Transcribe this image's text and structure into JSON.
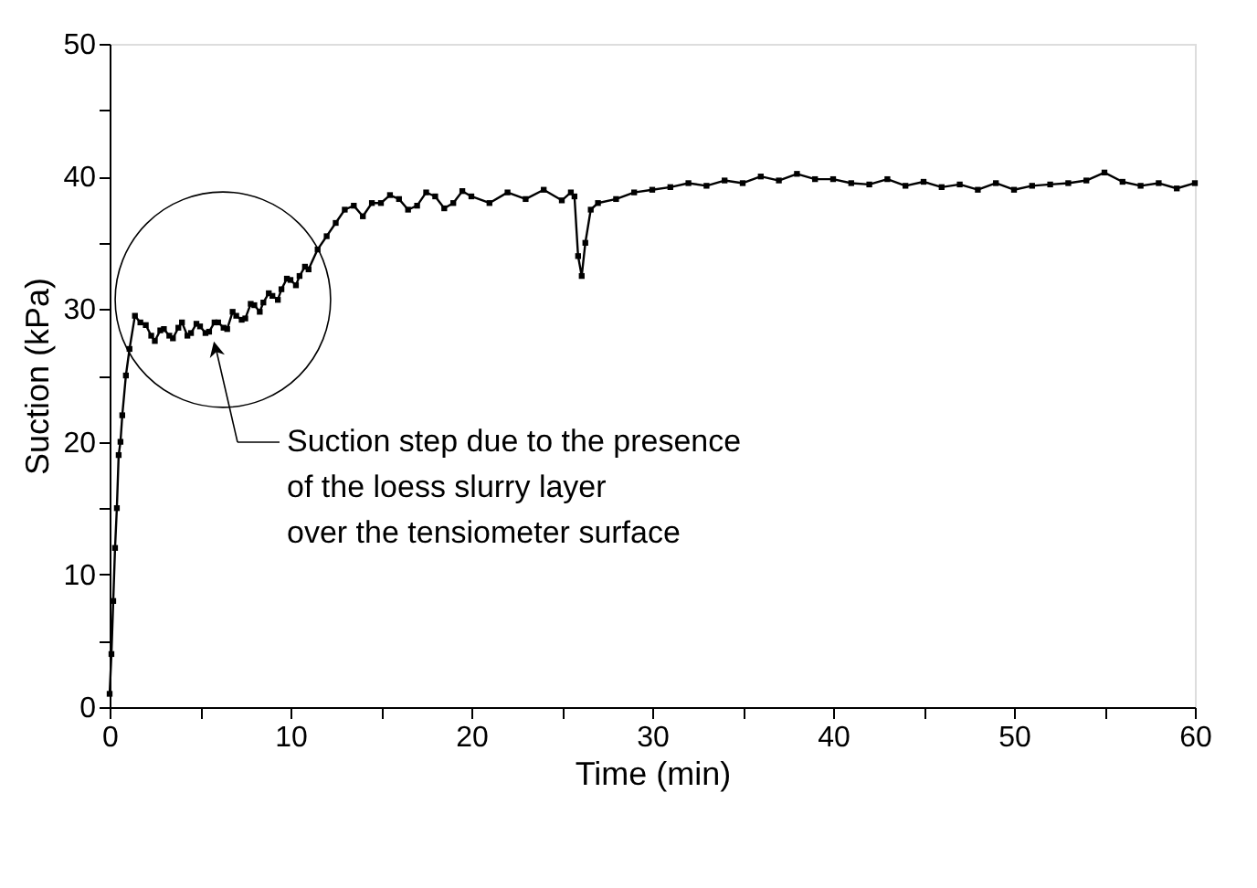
{
  "chart_data": {
    "type": "line",
    "xlabel": "Time (min)",
    "ylabel": "Suction (kPa)",
    "x": [
      0,
      0.1,
      0.2,
      0.3,
      0.4,
      0.5,
      0.6,
      0.7,
      0.9,
      1.1,
      1.4,
      1.7,
      2,
      2.3,
      2.5,
      2.8,
      3,
      3.3,
      3.5,
      3.8,
      4,
      4.3,
      4.5,
      4.8,
      5,
      5.3,
      5.5,
      5.8,
      6,
      6.3,
      6.5,
      6.8,
      7,
      7.3,
      7.5,
      7.8,
      8,
      8.3,
      8.5,
      8.8,
      9,
      9.3,
      9.5,
      9.8,
      10,
      10.3,
      10.5,
      10.8,
      11,
      11.5,
      12,
      12.5,
      13,
      13.5,
      14,
      14.5,
      15,
      15.5,
      16,
      16.5,
      17,
      17.5,
      18,
      18.5,
      19,
      19.5,
      20,
      21,
      22,
      23,
      24,
      25,
      25.5,
      25.7,
      25.9,
      26.1,
      26.3,
      26.6,
      27,
      28,
      29,
      30,
      31,
      32,
      33,
      34,
      35,
      36,
      37,
      38,
      39,
      40,
      41,
      42,
      43,
      44,
      45,
      46,
      47,
      48,
      49,
      50,
      51,
      52,
      53,
      54,
      55,
      56,
      57,
      58,
      59,
      60
    ],
    "series": [
      {
        "color": "#000000",
        "values": [
          1,
          4,
          8,
          12,
          15,
          19,
          20,
          22,
          25,
          27,
          29.5,
          29,
          28.8,
          28,
          27.6,
          28.4,
          28.5,
          28,
          27.8,
          28.6,
          29,
          28,
          28.2,
          28.9,
          28.7,
          28.2,
          28.3,
          29,
          29,
          28.6,
          28.5,
          29.8,
          29.5,
          29.2,
          29.3,
          30.4,
          30.3,
          29.8,
          30.5,
          31.2,
          31,
          30.7,
          31.5,
          32.3,
          32.2,
          31.8,
          32.5,
          33.2,
          33,
          34.5,
          35.5,
          36.5,
          37.5,
          37.8,
          37,
          38,
          38,
          38.6,
          38.3,
          37.5,
          37.8,
          38.8,
          38.5,
          37.6,
          38,
          38.9,
          38.5,
          38,
          38.8,
          38.3,
          39,
          38.2,
          38.8,
          38.5,
          34,
          32.5,
          35,
          37.5,
          38,
          38.3,
          38.8,
          39,
          39.2,
          39.5,
          39.3,
          39.7,
          39.5,
          40,
          39.7,
          40.2,
          39.8,
          39.8,
          39.5,
          39.4,
          39.8,
          39.3,
          39.6,
          39.2,
          39.4,
          39,
          39.5,
          39,
          39.3,
          39.4,
          39.5,
          39.7,
          40.3,
          39.6,
          39.3,
          39.5,
          39.1,
          39.5
        ]
      }
    ],
    "xlim": [
      0,
      60
    ],
    "ylim": [
      0,
      50
    ],
    "xticks": [
      0,
      {
        "value": 5,
        "label": null
      },
      10,
      {
        "value": 15,
        "label": null
      },
      20,
      {
        "value": 25,
        "label": null
      },
      30,
      {
        "value": 35,
        "label": null
      },
      40,
      {
        "value": 45,
        "label": null
      },
      50,
      {
        "value": 55,
        "label": null
      },
      60
    ],
    "yticks": [
      0,
      {
        "value": 5,
        "label": null
      },
      10,
      {
        "value": 15,
        "label": null
      },
      20,
      {
        "value": 25,
        "label": null
      },
      30,
      {
        "value": 35,
        "label": null
      },
      40,
      {
        "value": 45,
        "label": null
      },
      50
    ],
    "marker": "square",
    "line_style": "solid",
    "grid": false,
    "annotations": [
      "Suction step due to the presence\nof the loess slurry layer\nover the tensiometer surface"
    ]
  }
}
